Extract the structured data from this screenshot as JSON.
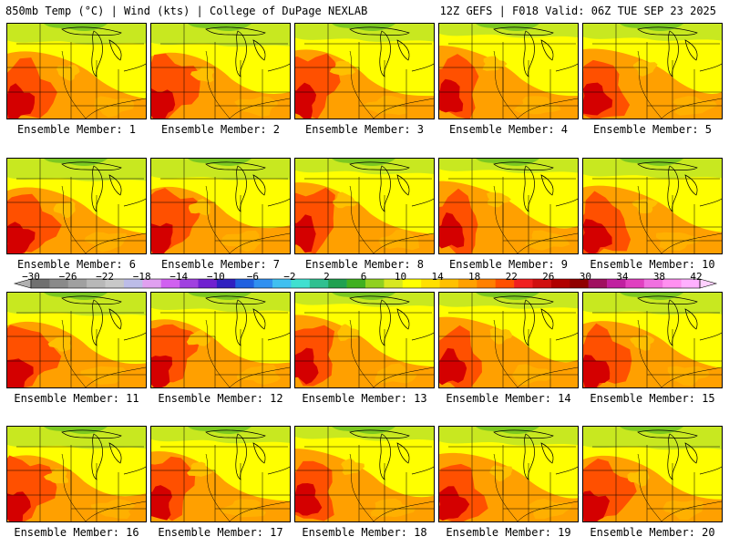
{
  "header": {
    "left": "850mb Temp (°C) | Wind (kts) | College of DuPage NEXLAB",
    "right": "12Z GEFS | F018 Valid: 06Z TUE SEP 23 2025"
  },
  "panels": [
    {
      "label": "Ensemble Member: 1"
    },
    {
      "label": "Ensemble Member: 2"
    },
    {
      "label": "Ensemble Member: 3"
    },
    {
      "label": "Ensemble Member: 4"
    },
    {
      "label": "Ensemble Member: 5"
    },
    {
      "label": "Ensemble Member: 6"
    },
    {
      "label": "Ensemble Member: 7"
    },
    {
      "label": "Ensemble Member: 8"
    },
    {
      "label": "Ensemble Member: 9"
    },
    {
      "label": "Ensemble Member: 10"
    },
    {
      "label": "Ensemble Member: 11"
    },
    {
      "label": "Ensemble Member: 12"
    },
    {
      "label": "Ensemble Member: 13"
    },
    {
      "label": "Ensemble Member: 14"
    },
    {
      "label": "Ensemble Member: 15"
    },
    {
      "label": "Ensemble Member: 16"
    },
    {
      "label": "Ensemble Member: 17"
    },
    {
      "label": "Ensemble Member: 18"
    },
    {
      "label": "Ensemble Member: 19"
    },
    {
      "label": "Ensemble Member: 20"
    }
  ],
  "colorbar": {
    "tick_labels": [
      "−30",
      "−26",
      "−22",
      "−18",
      "−14",
      "−10",
      "−6",
      "−2",
      "2",
      "6",
      "10",
      "14",
      "18",
      "22",
      "26",
      "30",
      "34",
      "38",
      "42"
    ],
    "colors": [
      "#707070",
      "#8a8a8a",
      "#a0a0a0",
      "#b8b8b8",
      "#c8c8c8",
      "#bcbce8",
      "#e0a0f0",
      "#d060f0",
      "#a040e0",
      "#7020d0",
      "#3020c0",
      "#2060e0",
      "#3090f0",
      "#40c0f0",
      "#40e0d0",
      "#30c090",
      "#20a050",
      "#40b020",
      "#90d020",
      "#d8e820",
      "#ffff00",
      "#ffe000",
      "#ffc000",
      "#ffa000",
      "#ff8000",
      "#ff5000",
      "#f02020",
      "#d01010",
      "#b00000",
      "#900000",
      "#a01060",
      "#c020a0",
      "#e040c0",
      "#f070e0",
      "#ff90f0",
      "#ffb0ff"
    ]
  },
  "colors": {
    "red": "#d40000",
    "orange_red": "#ff5000",
    "orange": "#ffa000",
    "yellow": "#ffff00",
    "green_yellow": "#c8e820",
    "green": "#7cc820"
  }
}
